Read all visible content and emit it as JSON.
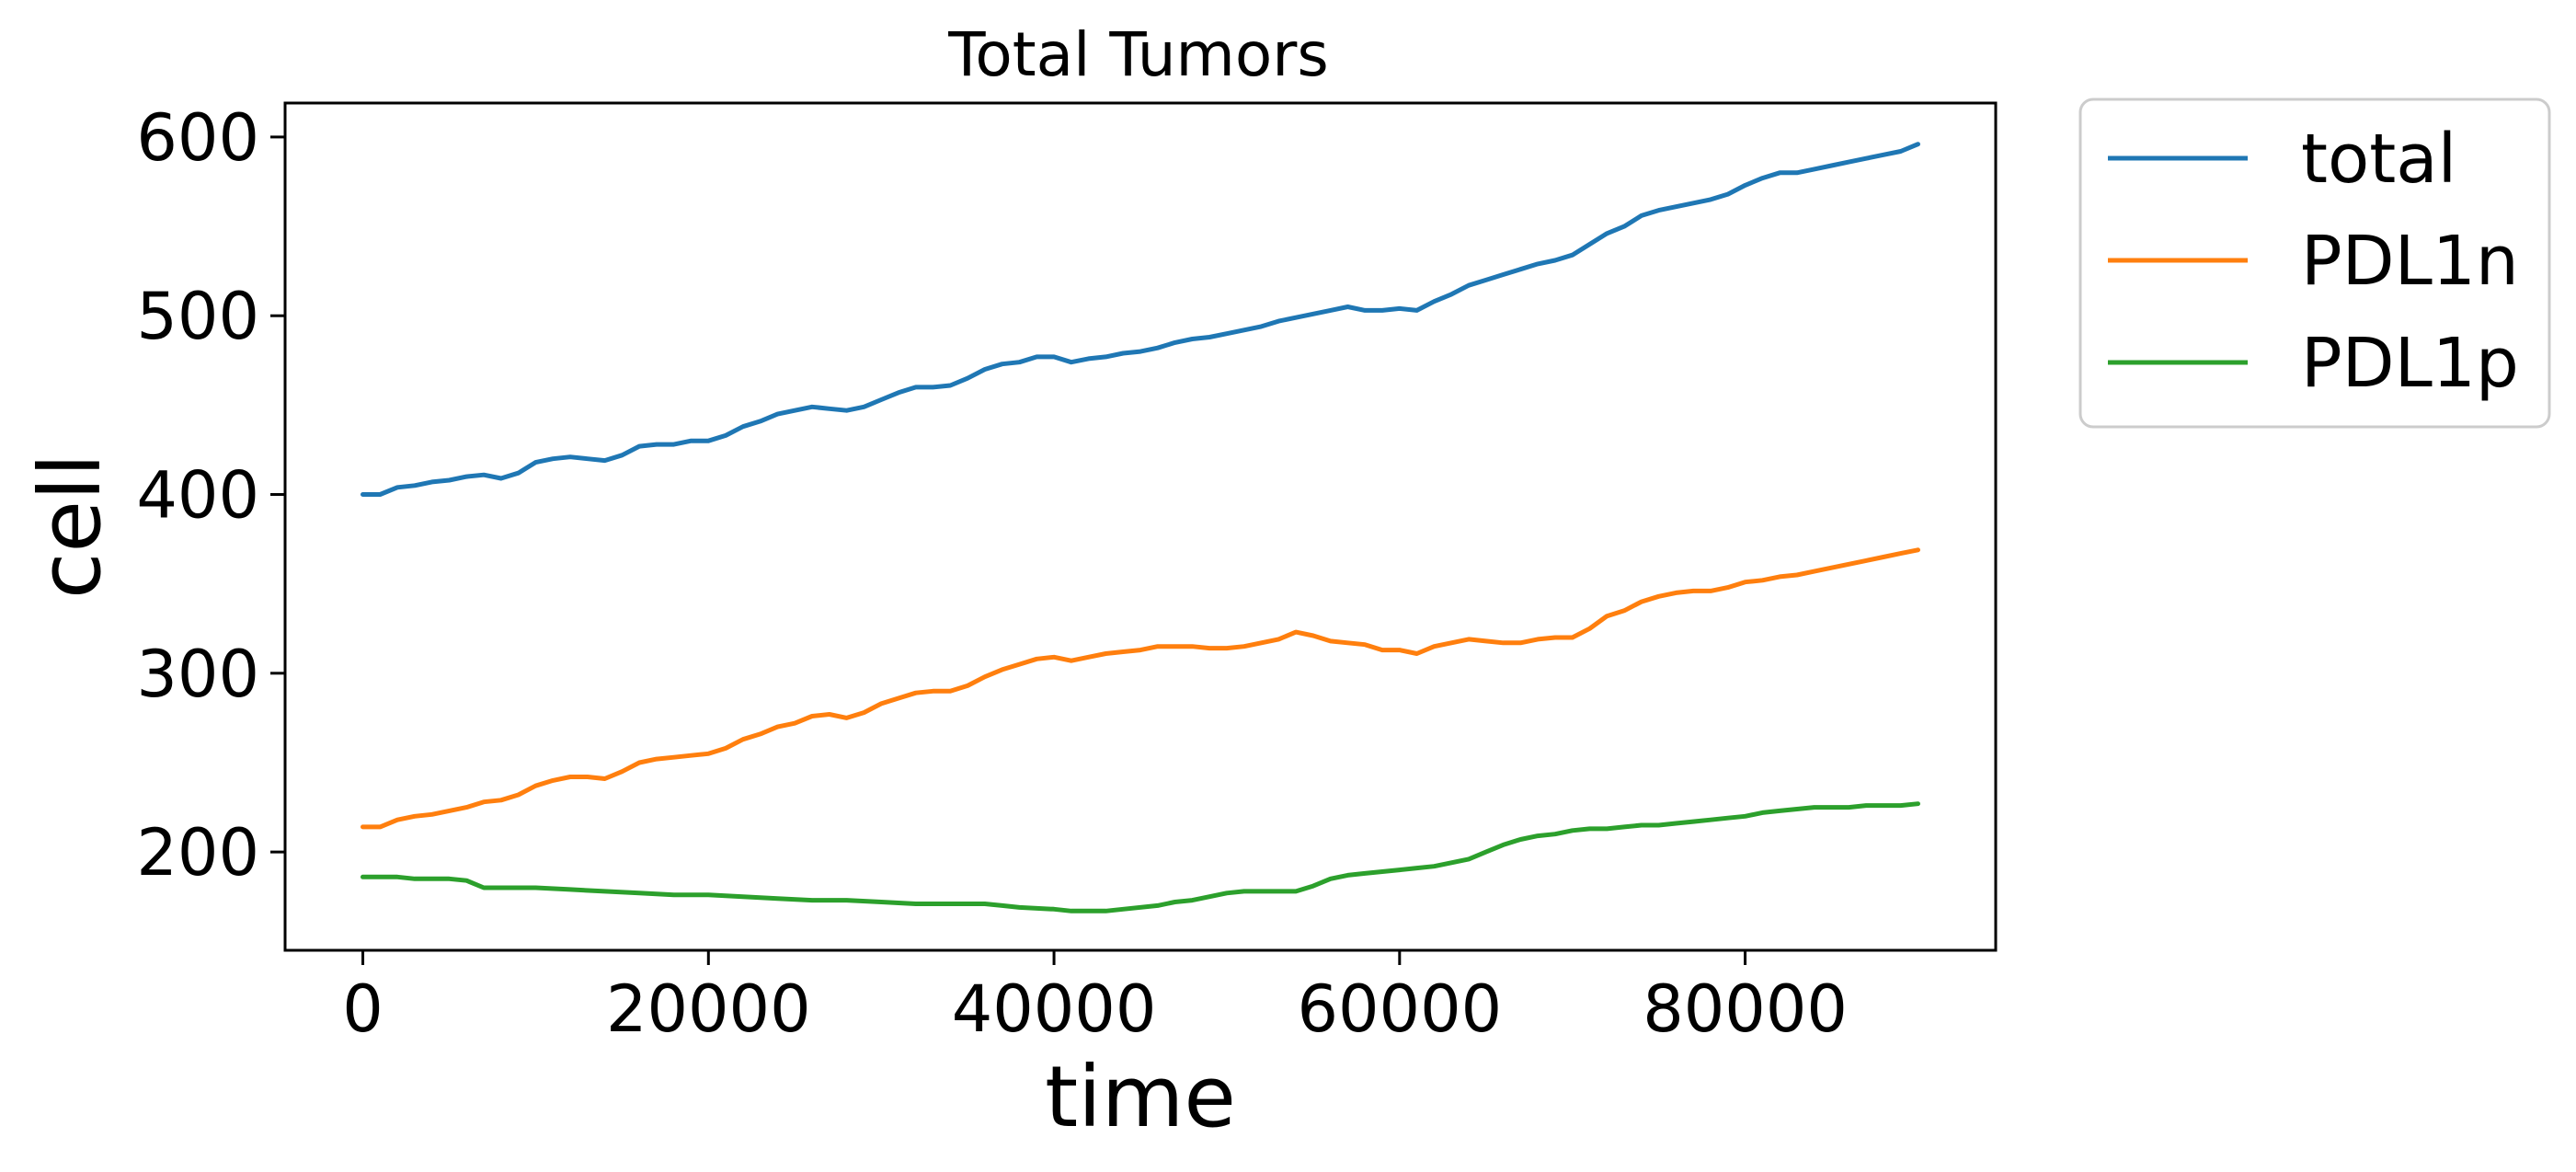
{
  "chart_data": {
    "type": "line",
    "title": "Total Tumors",
    "xlabel": "time",
    "ylabel": "cell",
    "xlim": [
      -4500,
      94500
    ],
    "ylim": [
      145,
      619
    ],
    "xticks": [
      0,
      20000,
      40000,
      60000,
      80000
    ],
    "yticks": [
      200,
      300,
      400,
      500,
      600
    ],
    "grid": false,
    "legend": "outside-right-top",
    "series": [
      {
        "name": "total",
        "color": "#1f77b4",
        "points": [
          [
            0,
            400
          ],
          [
            1000,
            400
          ],
          [
            2000,
            404
          ],
          [
            3000,
            405
          ],
          [
            4000,
            407
          ],
          [
            5000,
            408
          ],
          [
            6000,
            410
          ],
          [
            7000,
            411
          ],
          [
            8000,
            409
          ],
          [
            9000,
            412
          ],
          [
            10000,
            418
          ],
          [
            11000,
            420
          ],
          [
            12000,
            421
          ],
          [
            13000,
            420
          ],
          [
            14000,
            419
          ],
          [
            15000,
            422
          ],
          [
            16000,
            427
          ],
          [
            17000,
            428
          ],
          [
            18000,
            428
          ],
          [
            19000,
            430
          ],
          [
            20000,
            430
          ],
          [
            21000,
            433
          ],
          [
            22000,
            438
          ],
          [
            23000,
            441
          ],
          [
            24000,
            445
          ],
          [
            25000,
            447
          ],
          [
            26000,
            449
          ],
          [
            27000,
            448
          ],
          [
            28000,
            447
          ],
          [
            29000,
            449
          ],
          [
            30000,
            453
          ],
          [
            31000,
            457
          ],
          [
            32000,
            460
          ],
          [
            33000,
            460
          ],
          [
            34000,
            461
          ],
          [
            35000,
            465
          ],
          [
            36000,
            470
          ],
          [
            37000,
            473
          ],
          [
            38000,
            474
          ],
          [
            39000,
            477
          ],
          [
            40000,
            477
          ],
          [
            41000,
            474
          ],
          [
            42000,
            476
          ],
          [
            43000,
            477
          ],
          [
            44000,
            479
          ],
          [
            45000,
            480
          ],
          [
            46000,
            482
          ],
          [
            47000,
            485
          ],
          [
            48000,
            487
          ],
          [
            49000,
            488
          ],
          [
            50000,
            490
          ],
          [
            51000,
            492
          ],
          [
            52000,
            494
          ],
          [
            53000,
            497
          ],
          [
            54000,
            499
          ],
          [
            55000,
            501
          ],
          [
            56000,
            503
          ],
          [
            57000,
            505
          ],
          [
            58000,
            503
          ],
          [
            59000,
            503
          ],
          [
            60000,
            504
          ],
          [
            61000,
            503
          ],
          [
            62000,
            508
          ],
          [
            63000,
            512
          ],
          [
            64000,
            517
          ],
          [
            65000,
            520
          ],
          [
            66000,
            523
          ],
          [
            67000,
            526
          ],
          [
            68000,
            529
          ],
          [
            69000,
            531
          ],
          [
            70000,
            534
          ],
          [
            71000,
            540
          ],
          [
            72000,
            546
          ],
          [
            73000,
            550
          ],
          [
            74000,
            556
          ],
          [
            75000,
            559
          ],
          [
            76000,
            561
          ],
          [
            77000,
            563
          ],
          [
            78000,
            565
          ],
          [
            79000,
            568
          ],
          [
            80000,
            573
          ],
          [
            81000,
            577
          ],
          [
            82000,
            580
          ],
          [
            83000,
            580
          ],
          [
            84000,
            582
          ],
          [
            85000,
            584
          ],
          [
            86000,
            586
          ],
          [
            87000,
            588
          ],
          [
            88000,
            590
          ],
          [
            89000,
            592
          ],
          [
            90000,
            596
          ]
        ]
      },
      {
        "name": "PDL1n",
        "color": "#ff7f0e",
        "points": [
          [
            0,
            214
          ],
          [
            1000,
            214
          ],
          [
            2000,
            218
          ],
          [
            3000,
            220
          ],
          [
            4000,
            221
          ],
          [
            5000,
            223
          ],
          [
            6000,
            225
          ],
          [
            7000,
            228
          ],
          [
            8000,
            229
          ],
          [
            9000,
            232
          ],
          [
            10000,
            237
          ],
          [
            11000,
            240
          ],
          [
            12000,
            242
          ],
          [
            13000,
            242
          ],
          [
            14000,
            241
          ],
          [
            15000,
            245
          ],
          [
            16000,
            250
          ],
          [
            17000,
            252
          ],
          [
            18000,
            253
          ],
          [
            19000,
            254
          ],
          [
            20000,
            255
          ],
          [
            21000,
            258
          ],
          [
            22000,
            263
          ],
          [
            23000,
            266
          ],
          [
            24000,
            270
          ],
          [
            25000,
            272
          ],
          [
            26000,
            276
          ],
          [
            27000,
            277
          ],
          [
            28000,
            275
          ],
          [
            29000,
            278
          ],
          [
            30000,
            283
          ],
          [
            31000,
            286
          ],
          [
            32000,
            289
          ],
          [
            33000,
            290
          ],
          [
            34000,
            290
          ],
          [
            35000,
            293
          ],
          [
            36000,
            298
          ],
          [
            37000,
            302
          ],
          [
            38000,
            305
          ],
          [
            39000,
            308
          ],
          [
            40000,
            309
          ],
          [
            41000,
            307
          ],
          [
            42000,
            309
          ],
          [
            43000,
            311
          ],
          [
            44000,
            312
          ],
          [
            45000,
            313
          ],
          [
            46000,
            315
          ],
          [
            47000,
            315
          ],
          [
            48000,
            315
          ],
          [
            49000,
            314
          ],
          [
            50000,
            314
          ],
          [
            51000,
            315
          ],
          [
            52000,
            317
          ],
          [
            53000,
            319
          ],
          [
            54000,
            323
          ],
          [
            55000,
            321
          ],
          [
            56000,
            318
          ],
          [
            57000,
            317
          ],
          [
            58000,
            316
          ],
          [
            59000,
            313
          ],
          [
            60000,
            313
          ],
          [
            61000,
            311
          ],
          [
            62000,
            315
          ],
          [
            63000,
            317
          ],
          [
            64000,
            319
          ],
          [
            65000,
            318
          ],
          [
            66000,
            317
          ],
          [
            67000,
            317
          ],
          [
            68000,
            319
          ],
          [
            69000,
            320
          ],
          [
            70000,
            320
          ],
          [
            71000,
            325
          ],
          [
            72000,
            332
          ],
          [
            73000,
            335
          ],
          [
            74000,
            340
          ],
          [
            75000,
            343
          ],
          [
            76000,
            345
          ],
          [
            77000,
            346
          ],
          [
            78000,
            346
          ],
          [
            79000,
            348
          ],
          [
            80000,
            351
          ],
          [
            81000,
            352
          ],
          [
            82000,
            354
          ],
          [
            83000,
            355
          ],
          [
            84000,
            357
          ],
          [
            85000,
            359
          ],
          [
            86000,
            361
          ],
          [
            87000,
            363
          ],
          [
            88000,
            365
          ],
          [
            89000,
            367
          ],
          [
            90000,
            369
          ]
        ]
      },
      {
        "name": "PDL1p",
        "color": "#2ca02c",
        "points": [
          [
            0,
            186
          ],
          [
            2000,
            186
          ],
          [
            3000,
            185
          ],
          [
            5000,
            185
          ],
          [
            6000,
            184
          ],
          [
            7000,
            180
          ],
          [
            9000,
            180
          ],
          [
            10000,
            180
          ],
          [
            12000,
            179
          ],
          [
            14000,
            178
          ],
          [
            16000,
            177
          ],
          [
            18000,
            176
          ],
          [
            20000,
            176
          ],
          [
            22000,
            175
          ],
          [
            24000,
            174
          ],
          [
            26000,
            173
          ],
          [
            28000,
            173
          ],
          [
            30000,
            172
          ],
          [
            32000,
            171
          ],
          [
            34000,
            171
          ],
          [
            36000,
            171
          ],
          [
            37000,
            170
          ],
          [
            38000,
            169
          ],
          [
            40000,
            168
          ],
          [
            41000,
            167
          ],
          [
            43000,
            167
          ],
          [
            44000,
            168
          ],
          [
            46000,
            170
          ],
          [
            47000,
            172
          ],
          [
            48000,
            173
          ],
          [
            49000,
            175
          ],
          [
            50000,
            177
          ],
          [
            51000,
            178
          ],
          [
            52000,
            178
          ],
          [
            54000,
            178
          ],
          [
            55000,
            181
          ],
          [
            56000,
            185
          ],
          [
            57000,
            187
          ],
          [
            58000,
            188
          ],
          [
            59000,
            189
          ],
          [
            60000,
            190
          ],
          [
            61000,
            191
          ],
          [
            62000,
            192
          ],
          [
            63000,
            194
          ],
          [
            64000,
            196
          ],
          [
            65000,
            200
          ],
          [
            66000,
            204
          ],
          [
            67000,
            207
          ],
          [
            68000,
            209
          ],
          [
            69000,
            210
          ],
          [
            70000,
            212
          ],
          [
            71000,
            213
          ],
          [
            72000,
            213
          ],
          [
            73000,
            214
          ],
          [
            74000,
            215
          ],
          [
            75000,
            215
          ],
          [
            76000,
            216
          ],
          [
            77000,
            217
          ],
          [
            78000,
            218
          ],
          [
            79000,
            219
          ],
          [
            80000,
            220
          ],
          [
            81000,
            222
          ],
          [
            82000,
            223
          ],
          [
            83000,
            224
          ],
          [
            84000,
            225
          ],
          [
            85000,
            225
          ],
          [
            86000,
            225
          ],
          [
            87000,
            226
          ],
          [
            88000,
            226
          ],
          [
            89000,
            226
          ],
          [
            90000,
            227
          ]
        ]
      }
    ]
  }
}
